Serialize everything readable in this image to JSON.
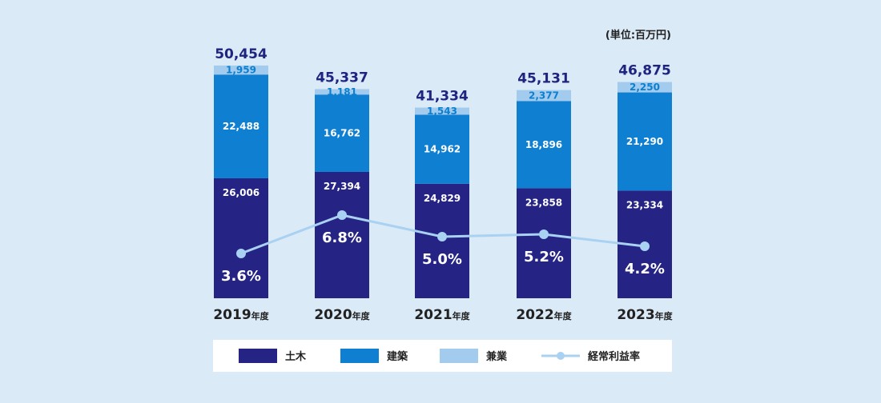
{
  "chart_data": {
    "type": "bar",
    "stacked": true,
    "unit_label": "(単位:百万円)",
    "categories": [
      "2019",
      "2020",
      "2021",
      "2022",
      "2023"
    ],
    "category_suffix": "年度",
    "series": [
      {
        "name": "土木",
        "color": "#252384",
        "values": [
          26006,
          27394,
          24829,
          23858,
          23334
        ],
        "labels": [
          "26,006",
          "27,394",
          "24,829",
          "23,858",
          "23,334"
        ]
      },
      {
        "name": "建築",
        "color": "#0f7fd2",
        "values": [
          22488,
          16762,
          14962,
          18896,
          21290
        ],
        "labels": [
          "22,488",
          "16,762",
          "14,962",
          "18,896",
          "21,290"
        ]
      },
      {
        "name": "兼業",
        "color": "#a2cbee",
        "values": [
          1959,
          1181,
          1543,
          2377,
          2250
        ],
        "labels": [
          "1,959",
          "1,181",
          "1,543",
          "2,377",
          "2,250"
        ]
      }
    ],
    "totals": [
      "50,454",
      "45,337",
      "41,334",
      "45,131",
      "46,875"
    ],
    "line_series": {
      "name": "経常利益率",
      "color": "#a9d1f2",
      "values": [
        3.6,
        6.8,
        5.0,
        5.2,
        4.2
      ],
      "labels": [
        "3.6%",
        "6.8%",
        "5.0%",
        "5.2%",
        "4.2%"
      ]
    },
    "ylim": [
      0,
      52000
    ],
    "legend_position": "bottom"
  }
}
